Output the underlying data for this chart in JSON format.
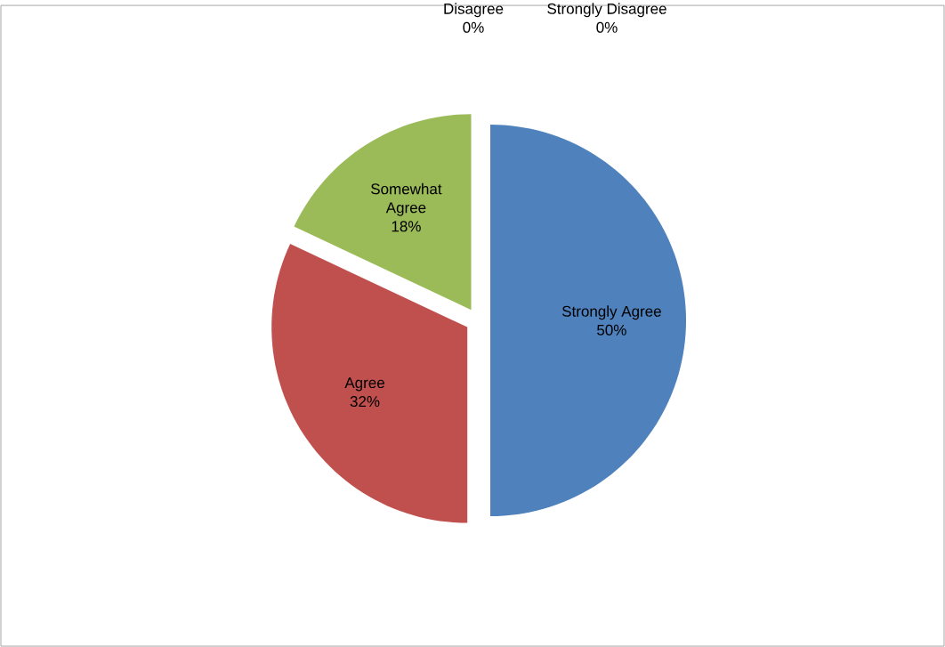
{
  "chart_data": {
    "type": "pie",
    "categories": [
      "Strongly Agree",
      "Agree",
      "Somewhat Agree",
      "Disagree",
      "Strongly Disagree"
    ],
    "values": [
      50,
      32,
      18,
      0,
      0
    ],
    "value_labels": [
      "50%",
      "32%",
      "18%",
      "0%",
      "0%"
    ],
    "colors": [
      "#4f81bd",
      "#c0504d",
      "#9bbb59",
      "#8064a2",
      "#4bacc6"
    ]
  }
}
